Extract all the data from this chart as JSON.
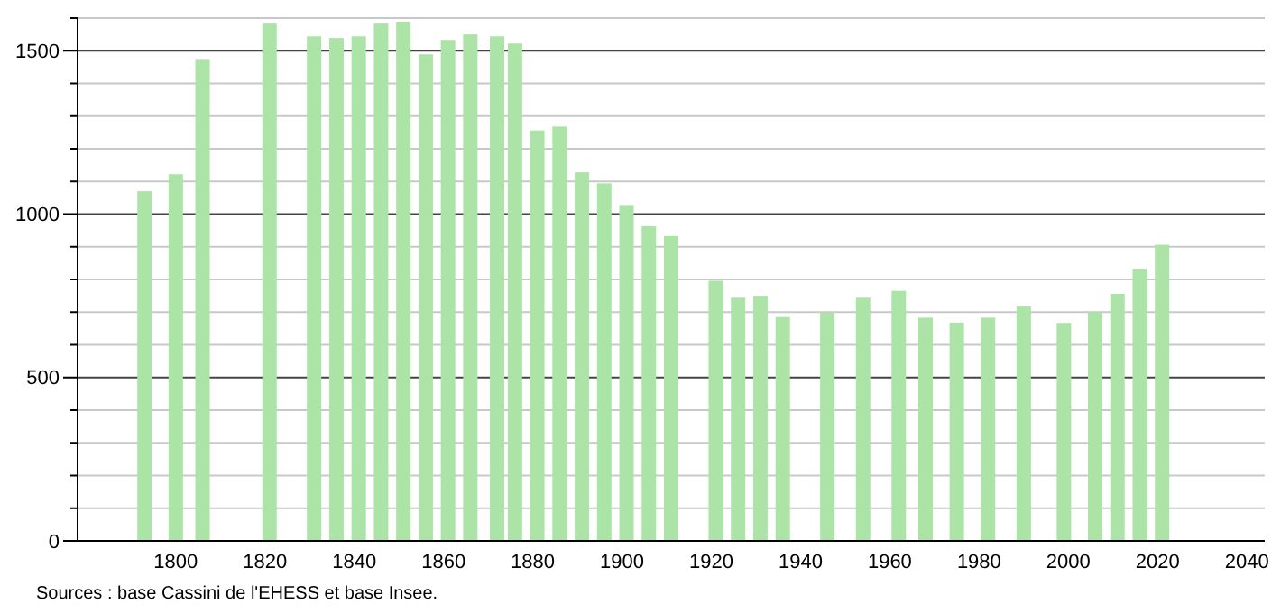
{
  "chart_data": {
    "type": "bar",
    "annotations": [
      "Sources : base Cassini de l'EHESS et base Insee."
    ],
    "x": [
      1793,
      1800,
      1806,
      1821,
      1831,
      1836,
      1841,
      1846,
      1851,
      1856,
      1861,
      1866,
      1872,
      1876,
      1881,
      1886,
      1891,
      1896,
      1901,
      1906,
      1911,
      1921,
      1926,
      1931,
      1936,
      1946,
      1954,
      1962,
      1968,
      1975,
      1982,
      1990,
      1999,
      2006,
      2011,
      2016,
      2021
    ],
    "values": [
      1070,
      1122,
      1472,
      1583,
      1544,
      1539,
      1544,
      1583,
      1589,
      1489,
      1533,
      1550,
      1544,
      1522,
      1256,
      1268,
      1128,
      1094,
      1028,
      963,
      933,
      796,
      744,
      750,
      685,
      698,
      744,
      765,
      683,
      668,
      683,
      717,
      667,
      700,
      756,
      833,
      906
    ],
    "color": "#ace3a6",
    "xlim": [
      1778,
      2044
    ],
    "xticks": [
      1800,
      1820,
      1840,
      1860,
      1880,
      1900,
      1920,
      1940,
      1960,
      1980,
      2000,
      2020,
      2040
    ],
    "ylim": [
      0,
      1600
    ],
    "yticks": [
      0,
      {
        "value": 100,
        "label": null
      },
      {
        "value": 200,
        "label": null
      },
      {
        "value": 300,
        "label": null
      },
      {
        "value": 400,
        "label": null
      },
      500,
      {
        "value": 600,
        "label": null
      },
      {
        "value": 700,
        "label": null
      },
      {
        "value": 800,
        "label": null
      },
      {
        "value": 900,
        "label": null
      },
      1000,
      {
        "value": 1100,
        "label": null
      },
      {
        "value": 1200,
        "label": null
      },
      {
        "value": 1300,
        "label": null
      },
      {
        "value": 1400,
        "label": null
      },
      1500,
      {
        "value": 1600,
        "label": null
      }
    ],
    "grid": true
  }
}
